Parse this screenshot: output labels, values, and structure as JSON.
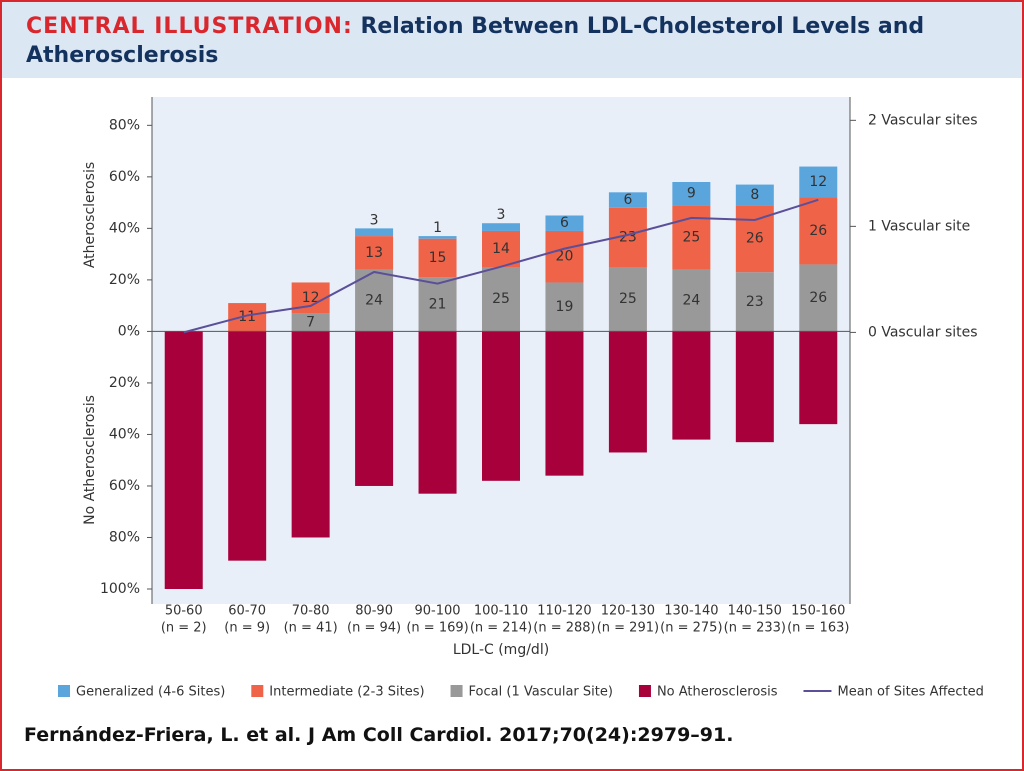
{
  "header": {
    "label": "CENTRAL ILLUSTRATION:",
    "title": "Relation Between LDL-Cholesterol Levels and Atherosclerosis"
  },
  "chart_data": {
    "type": "bar",
    "stacked": true,
    "ylabel_top": "Atherosclerosis",
    "ylabel_bottom": "No Atherosclerosis",
    "xlabel": "LDL-C (mg/dl)",
    "categories": [
      "50-60",
      "60-70",
      "70-80",
      "80-90",
      "90-100",
      "100-110",
      "110-120",
      "120-130",
      "130-140",
      "140-150",
      "150-160"
    ],
    "category_sublabels": [
      "(n = 2)",
      "(n = 9)",
      "(n = 41)",
      "(n = 94)",
      "(n = 169)",
      "(n = 214)",
      "(n = 288)",
      "(n = 291)",
      "(n = 275)",
      "(n = 233)",
      "(n = 163)"
    ],
    "series": [
      {
        "name": "Generalized (4-6 Sites)",
        "color": "#5aa6dc",
        "values": [
          0,
          0,
          0,
          3,
          1,
          3,
          6,
          6,
          9,
          8,
          12
        ]
      },
      {
        "name": "Intermediate (2-3 Sites)",
        "color": "#ef6448",
        "values": [
          0,
          11,
          12,
          13,
          15,
          14,
          20,
          23,
          25,
          26,
          26
        ]
      },
      {
        "name": "Focal (1 Vascular Site)",
        "color": "#999999",
        "values": [
          0,
          0,
          7,
          24,
          21,
          25,
          19,
          25,
          24,
          23,
          26
        ]
      },
      {
        "name": "No Atherosclerosis",
        "color": "#a8003b",
        "values": [
          -100,
          -89,
          -80,
          -60,
          -63,
          -58,
          -56,
          -47,
          -42,
          -43,
          -36
        ]
      },
      {
        "name": "Mean of Sites Affected",
        "color": "#5b4f9a",
        "type": "line",
        "axis": "y2",
        "values": [
          0,
          0.16,
          0.25,
          0.57,
          0.46,
          0.62,
          0.79,
          0.92,
          1.08,
          1.06,
          1.25
        ]
      }
    ],
    "ylim": [
      -100,
      91
    ],
    "yticks": [
      {
        "value": 80,
        "label": "80%"
      },
      {
        "value": 60,
        "label": "60%"
      },
      {
        "value": 40,
        "label": "40%"
      },
      {
        "value": 20,
        "label": "20%"
      },
      {
        "value": 0,
        "label": "0%"
      },
      {
        "value": -20,
        "label": "20%"
      },
      {
        "value": -40,
        "label": "40%"
      },
      {
        "value": -60,
        "label": "60%"
      },
      {
        "value": -80,
        "label": "80%"
      },
      {
        "value": -100,
        "label": "100%"
      }
    ],
    "y2lim": [
      -2.42,
      2.22
    ],
    "y2ticks": [
      {
        "value": 2,
        "label": "2 Vascular sites"
      },
      {
        "value": 1,
        "label": "1 Vascular site"
      },
      {
        "value": 0,
        "label": "0 Vascular sites"
      }
    ]
  },
  "citation": "Fernández-Friera, L. et al. J Am Coll Cardiol. 2017;70(24):2979–91."
}
